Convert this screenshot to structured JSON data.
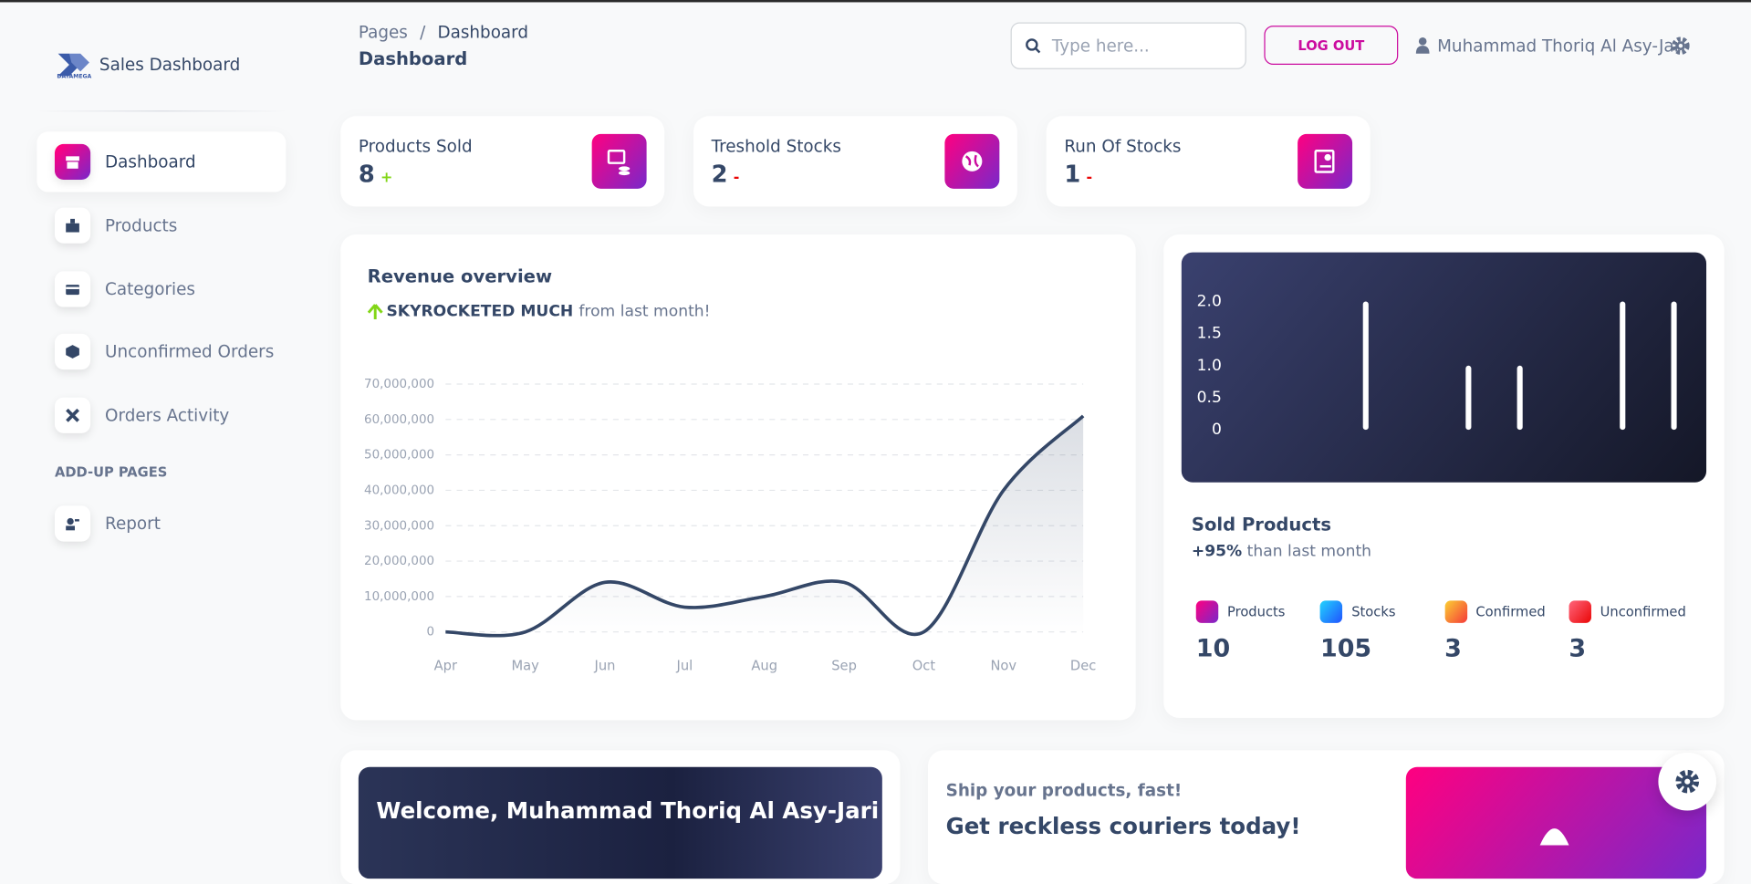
{
  "sidebar": {
    "logo_text": "DAYAMEGA",
    "brand": "Sales Dashboard",
    "nav": [
      "Dashboard",
      "Products",
      "Categories",
      "Unconfirmed Orders",
      "Orders Activity"
    ],
    "section": "ADD-UP PAGES",
    "extra_nav": [
      "Report"
    ]
  },
  "header": {
    "breadcrumb": [
      "Pages",
      "Dashboard"
    ],
    "separator": "/",
    "title": "Dashboard",
    "search_placeholder": "Type here...",
    "logout": "LOG OUT",
    "user": "Muhammad Thoriq Al Asy-Jari"
  },
  "stats": [
    {
      "title": "Products Sold",
      "value": 8,
      "change": "+"
    },
    {
      "title": "Treshold Stocks",
      "value": 2,
      "change": "-"
    },
    {
      "title": "Run Of Stocks",
      "value": 1,
      "change": "-"
    }
  ],
  "chart_data": [
    {
      "type": "line",
      "title": "Revenue overview",
      "subtitle_highlight": "SKYROCKETED MUCH",
      "subtitle": "from last month!",
      "categories": [
        "Apr",
        "May",
        "Jun",
        "Jul",
        "Aug",
        "Sep",
        "Oct",
        "Nov",
        "Dec"
      ],
      "values": [
        0,
        0,
        14000000,
        7000000,
        10000000,
        14000000,
        0,
        40000000,
        61000000
      ],
      "color": "#344767",
      "ylim": [
        0,
        70000000
      ],
      "yticks": [
        0,
        {
          "value": 10000000,
          "label": "10,000,000"
        },
        {
          "value": 20000000,
          "label": "20,000,000"
        },
        {
          "value": 30000000,
          "label": "30,000,000"
        },
        {
          "value": 40000000,
          "label": "40,000,000"
        },
        {
          "value": 50000000,
          "label": "50,000,000"
        },
        {
          "value": 60000000,
          "label": "60,000,000"
        },
        {
          "value": 70000000,
          "label": "70,000,000"
        }
      ],
      "grid": true
    },
    {
      "type": "bar",
      "categories": [
        null,
        null,
        null,
        null,
        null,
        null,
        null,
        null,
        null
      ],
      "values": [
        0,
        0,
        2,
        0,
        1,
        1,
        0,
        2,
        2
      ],
      "color": "#ffffff",
      "ylim": [
        0,
        2
      ],
      "yticks": [
        0,
        0.5,
        {
          "value": 1,
          "label": "1.0"
        },
        1.5,
        {
          "value": 2,
          "label": "2.0"
        }
      ],
      "grid": false
    }
  ],
  "sold_products": {
    "title": "Sold Products",
    "change": "+95%",
    "change_text": "than last month",
    "items": [
      {
        "label": "Products",
        "value": 10
      },
      {
        "label": "Stocks",
        "value": 105
      },
      {
        "label": "Confirmed",
        "value": 3
      },
      {
        "label": "Unconfirmed",
        "value": 3
      }
    ]
  },
  "welcome": {
    "title": "Welcome, Muhammad Thoriq Al Asy-Jari"
  },
  "promo": {
    "subtitle": "Ship your products, fast!",
    "title": "Get reckless couriers today!"
  }
}
